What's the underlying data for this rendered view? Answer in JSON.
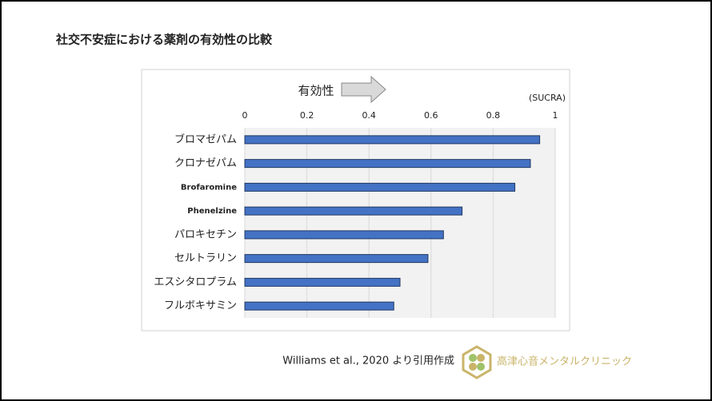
{
  "chart_data": {
    "type": "bar",
    "orientation": "horizontal",
    "title": "社交不安症における薬剤の有効性の比較",
    "annotation": "有効性",
    "unit_label": "(SUCRA)",
    "categories": [
      "ブロマゼパム",
      "クロナゼパム",
      "Brofaromine",
      "Phenelzine",
      "パロキセチン",
      "セルトラリン",
      "エスシタロプラム",
      "フルボキサミン"
    ],
    "values": [
      0.95,
      0.92,
      0.87,
      0.7,
      0.64,
      0.59,
      0.5,
      0.48
    ],
    "color": "#4472c4",
    "xlim": [
      0,
      1
    ],
    "xticks": [
      0,
      0.2,
      0.4,
      0.6,
      0.8,
      1
    ],
    "grid": true,
    "source": "Williams et al., 2020 より引用作成",
    "logo_text": "高津心音メンタルクリニック"
  }
}
